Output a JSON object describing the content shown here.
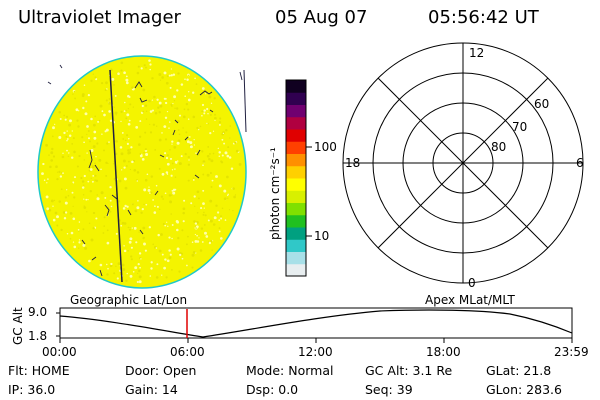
{
  "header": {
    "instrument": "Ultraviolet Imager",
    "date": "05 Aug 07",
    "time": "05:56:42 UT"
  },
  "colorbar": {
    "unit_label": "photon cm⁻²s⁻¹",
    "ticks": [
      "100",
      "10"
    ],
    "colors": [
      "#e8eef0",
      "#a8e0e8",
      "#30c8c8",
      "#00a080",
      "#20c020",
      "#80e000",
      "#d8f000",
      "#ffff00",
      "#ffd000",
      "#ff9000",
      "#ff4000",
      "#e00000",
      "#b00040",
      "#700070",
      "#300050",
      "#100020"
    ]
  },
  "globe": {
    "fill_color": "#f4f400",
    "limb_color": "#20c8c8"
  },
  "polar_plot": {
    "mlt_labels": {
      "top": "12",
      "right": "6",
      "bottom": "0",
      "left": "18"
    },
    "lat_labels": [
      "60",
      "70",
      "80"
    ]
  },
  "altitude_panel": {
    "left_title": "Geographic Lat/Lon",
    "right_title": "Apex  MLat/MLT",
    "y_label": "GC Alt",
    "y_ticks": [
      "9.0",
      "1.8"
    ],
    "x_ticks": [
      "00:00",
      "06:00",
      "12:00",
      "18:00",
      "23:59"
    ],
    "current_marker_color": "#e00000"
  },
  "status": {
    "row1": {
      "flt": "Flt: HOME",
      "door": "Door: Open",
      "mode": "Mode: Normal",
      "gc_alt": "GC Alt: 3.1 Re",
      "glat": "GLat:  21.8"
    },
    "row2": {
      "ip": "IP: 36.0",
      "gain": "Gain: 14",
      "dsp": "Dsp:     0.0",
      "seq": "Seq: 39",
      "glon": "GLon: 283.6"
    }
  }
}
